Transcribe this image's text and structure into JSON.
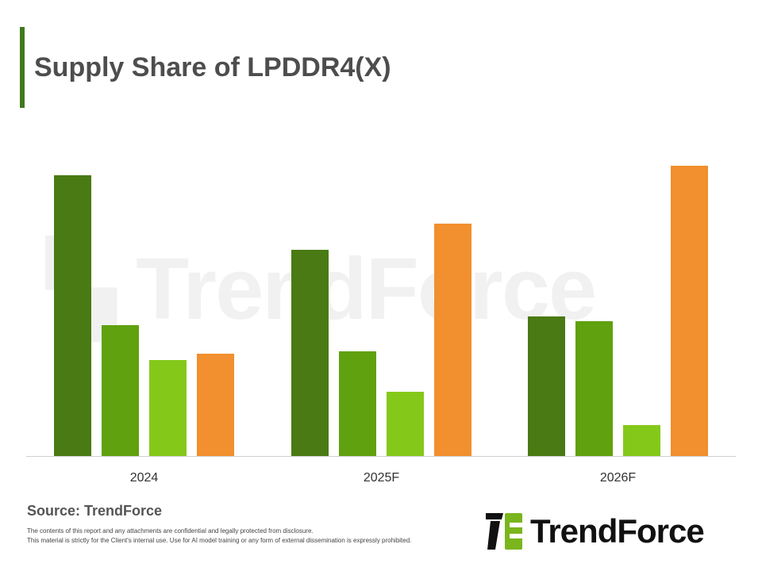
{
  "title": "Supply Share of LPDDR4(X)",
  "source": "Source: TrendForce",
  "disclaimer": [
    "The contents of this report and any attachments are confidential and legally protected from disclosure.",
    "This material is strictly for the Client's internal use. Use for AI model training or any form of external dissemination is expressly prohibited."
  ],
  "logo_text": "TrendForce",
  "watermark": "TrendForce",
  "chart_data": {
    "type": "bar",
    "categories": [
      "2024",
      "2025F",
      "2026F"
    ],
    "series": [
      {
        "color": "#4a7a13",
        "values": [
          354,
          260,
          176
        ]
      },
      {
        "color": "#5fa10e",
        "values": [
          165,
          132,
          170
        ]
      },
      {
        "color": "#84c91a",
        "values": [
          121,
          81,
          39
        ]
      },
      {
        "color": "#f28f2e",
        "values": [
          129,
          293,
          366
        ]
      }
    ],
    "ylim": [
      0,
      380
    ],
    "grid": false,
    "legend": "none"
  }
}
